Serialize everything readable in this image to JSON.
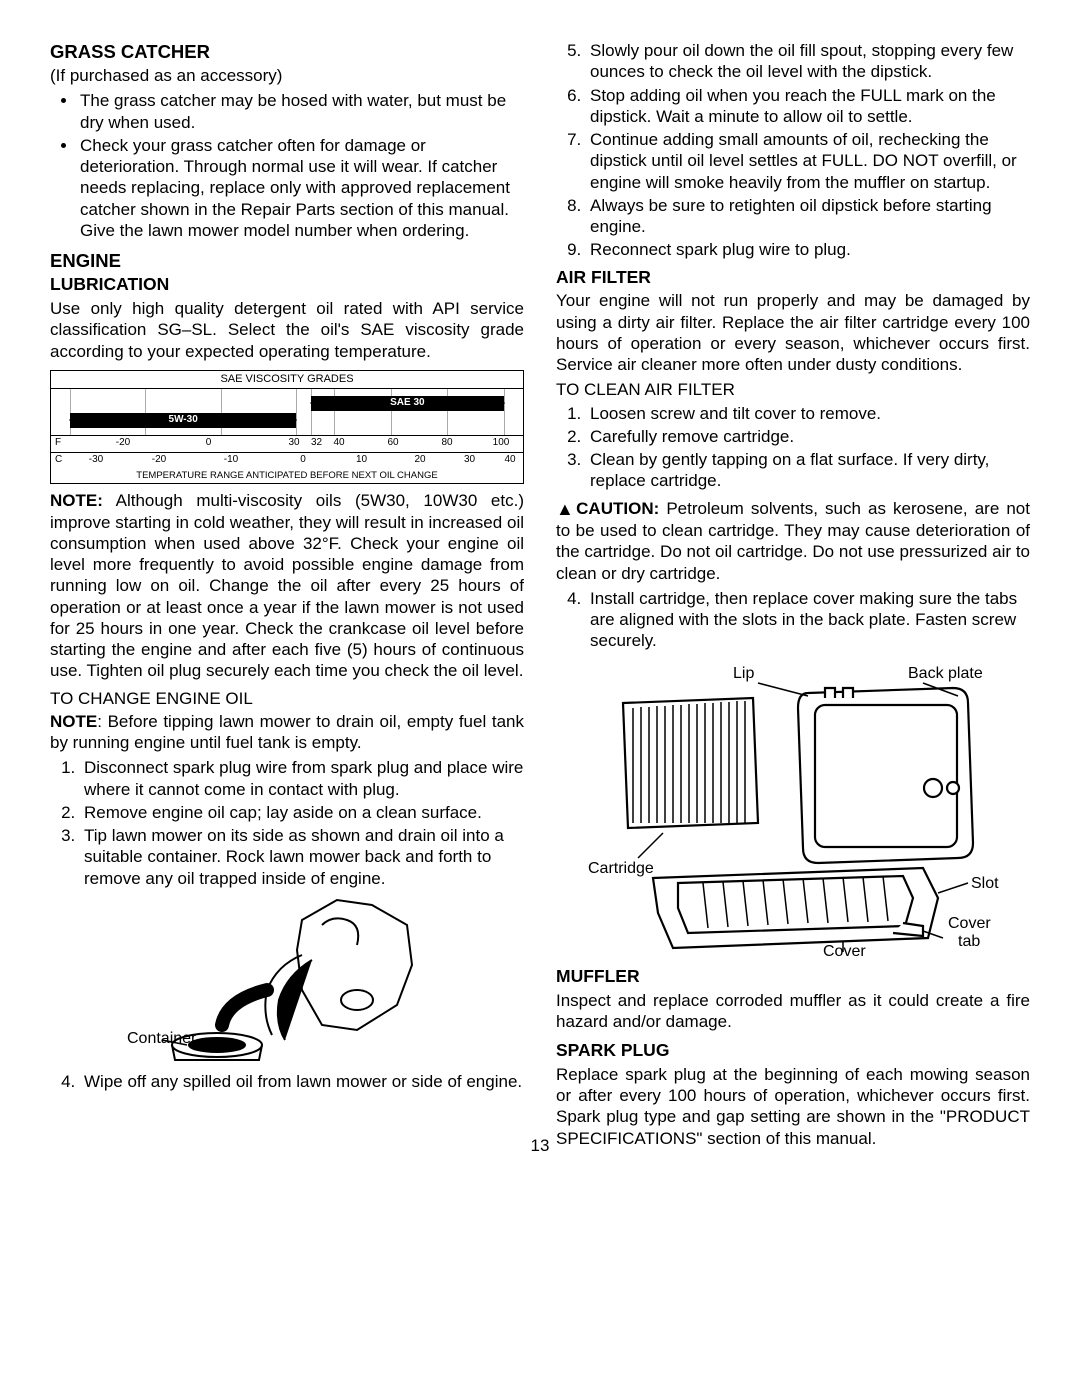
{
  "left": {
    "grass_catcher": {
      "title": "GRASS CATCHER",
      "subtitle": "(If purchased as an accessory)",
      "bullets": [
        "The grass catcher may be hosed with water, but must be dry when used.",
        "Check your grass catcher often for damage or deterioration.  Through normal use it will wear. If catcher needs replacing, replace only with approved replacement catcher shown in the Repair Parts section of this manual.  Give the lawn mower model number when ordering."
      ]
    },
    "engine": {
      "title": "ENGINE",
      "lubrication_title": "LUBRICATION",
      "lubrication_text": "Use only high quality detergent oil rated with API service classification SG–SL.  Select the oil's SAE viscosity grade according to your expected operating temperature.",
      "viscosity_chart": {
        "title": "SAE VISCOSITY GRADES",
        "bars": [
          {
            "label": "5W-30",
            "start_pct": 4,
            "end_pct": 52,
            "top_pct": 52
          },
          {
            "label": "SAE 30",
            "start_pct": 55,
            "end_pct": 96,
            "top_pct": 16
          }
        ],
        "gridlines_pct": [
          4,
          20,
          36,
          52,
          55,
          60,
          72,
          84,
          96
        ],
        "f_label": "F",
        "f_ticks": [
          "-20",
          "0",
          "30",
          "32",
          "40",
          "60",
          "80",
          "100"
        ],
        "f_pos_pct": [
          12,
          31,
          50,
          55,
          60,
          72,
          84,
          96
        ],
        "c_label": "C",
        "c_ticks": [
          "-30",
          "-20",
          "-10",
          "0",
          "10",
          "20",
          "30",
          "40"
        ],
        "c_pos_pct": [
          6,
          20,
          36,
          52,
          65,
          78,
          89,
          98
        ],
        "footer": "TEMPERATURE RANGE ANTICIPATED BEFORE NEXT OIL CHANGE"
      },
      "note_label": "NOTE:",
      "note_text": "  Although multi-viscosity oils (5W30, 10W30 etc.) improve starting in cold weather, they will result in increased oil consumption when used above 32°F.  Check your engine oil level more frequently to avoid possible engine damage from running low on oil.  Change the oil after every 25 hours of operation or at least once a year if the lawn mower is not used for 25 hours in one year.  Check the crankcase oil level before starting the engine and after each five (5) hours of continuous use. Tighten oil plug securely each time you check the oil level.",
      "to_change_title": "TO CHANGE ENGINE OIL",
      "change_note_label": "NOTE",
      "change_note_text": ":  Before tipping lawn mower to drain oil, empty fuel tank by running engine until fuel tank is empty.",
      "change_steps_a": [
        "Disconnect spark plug wire from spark plug and place wire where it cannot come in contact with plug.",
        "Remove engine oil cap; lay aside on a clean surface.",
        "Tip lawn mower on its side as shown and drain oil into a suitable container. Rock lawn mower back and forth to remove any oil trapped inside of engine."
      ],
      "figure_container_label": "Container",
      "change_steps_b": [
        "Wipe off any spilled oil from lawn mower or side of engine."
      ]
    }
  },
  "right": {
    "change_steps_cont": [
      "Slowly pour oil down the oil fill spout, stopping every few ounces to check the oil level with the dipstick.",
      "Stop adding oil when you reach the FULL mark on the dipstick.  Wait a minute to allow oil to settle.",
      "Continue adding small amounts of oil, rechecking the dipstick until oil level settles at FULL.  DO NOT overfill, or engine will smoke heavily from the muffler on startup.",
      "Always be sure to retighten oil dipstick before starting engine.",
      "Reconnect spark plug wire to plug."
    ],
    "air_filter": {
      "title": "AIR FILTER",
      "intro": "Your engine will not run properly and may be damaged by using a dirty air filter.  Replace the air filter cartridge every 100 hours of operation or every season, whichever occurs first.  Service air cleaner more often under dusty conditions.",
      "to_clean_title": "TO CLEAN AIR FILTER",
      "steps_a": [
        "Loosen screw and tilt cover to remove.",
        "Carefully remove cartridge.",
        "Clean by gently tapping on a flat surface. If very dirty, replace cartridge."
      ],
      "caution_label": "CAUTION:",
      "caution_text": "  Petroleum solvents, such as kerosene, are not to be used to clean cartridge. They may cause deterioration of the cartridge. Do not oil cartridge. Do not use pressurized air to clean or dry cartridge.",
      "steps_b": [
        "Install cartridge, then replace cover making sure the tabs are aligned with the slots in the back plate. Fasten screw securely."
      ],
      "figure_labels": {
        "lip": "Lip",
        "back_plate": "Back plate",
        "cartridge": "Cartridge",
        "slot": "Slot",
        "cover": "Cover",
        "cover_tab": "Cover tab"
      }
    },
    "muffler": {
      "title": "MUFFLER",
      "text": "Inspect and replace corroded muffler as it could create a fire hazard and/or damage."
    },
    "spark_plug": {
      "title": "SPARK PLUG",
      "text": "Replace spark plug at the beginning of each mowing season or after every 100 hours of operation, whichever occurs first.  Spark plug type and gap setting are shown in the \"PRODUCT SPECIFICATIONS\" section of this manual."
    }
  },
  "page_number": "13"
}
